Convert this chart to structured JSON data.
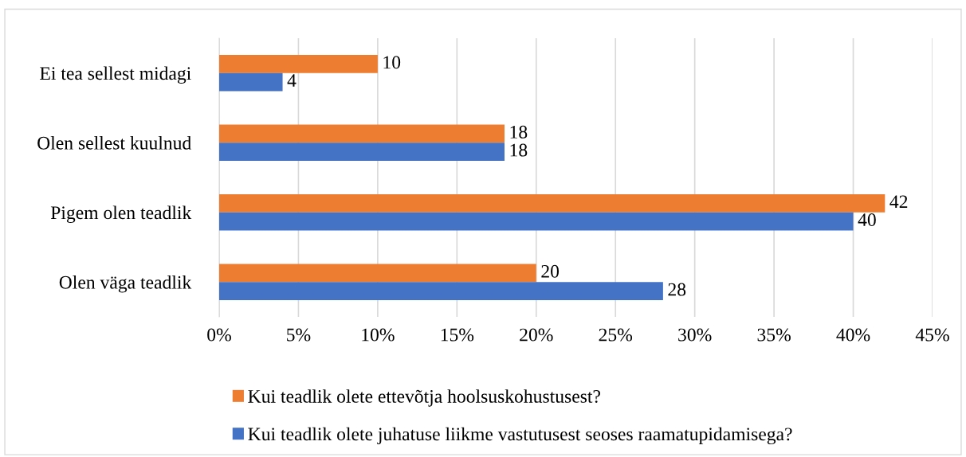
{
  "chart_data": {
    "type": "bar",
    "orientation": "horizontal",
    "categories": [
      "Ei tea sellest midagi",
      "Olen sellest kuulnud",
      "Pigem olen teadlik",
      "Olen väga teadlik"
    ],
    "series": [
      {
        "name": "Kui teadlik olete ettevõtja hoolsuskohustusest?",
        "color": "#ed7d31",
        "values": [
          10,
          18,
          42,
          20
        ]
      },
      {
        "name": "Kui teadlik olete juhatuse liikme vastutusest seoses raamatupidamisega?",
        "color": "#4472c4",
        "values": [
          4,
          18,
          40,
          28
        ]
      }
    ],
    "xlim": [
      0,
      45
    ],
    "xticks": [
      {
        "value": 0,
        "label": "0%"
      },
      {
        "value": 5,
        "label": "5%"
      },
      {
        "value": 10,
        "label": "10%"
      },
      {
        "value": 15,
        "label": "15%"
      },
      {
        "value": 20,
        "label": "20%"
      },
      {
        "value": 25,
        "label": "25%"
      },
      {
        "value": 30,
        "label": "30%"
      },
      {
        "value": 35,
        "label": "35%"
      },
      {
        "value": 40,
        "label": "40%"
      },
      {
        "value": 45,
        "label": "45%"
      }
    ],
    "grid": "x",
    "legend": "bottom",
    "data_labels": true
  }
}
